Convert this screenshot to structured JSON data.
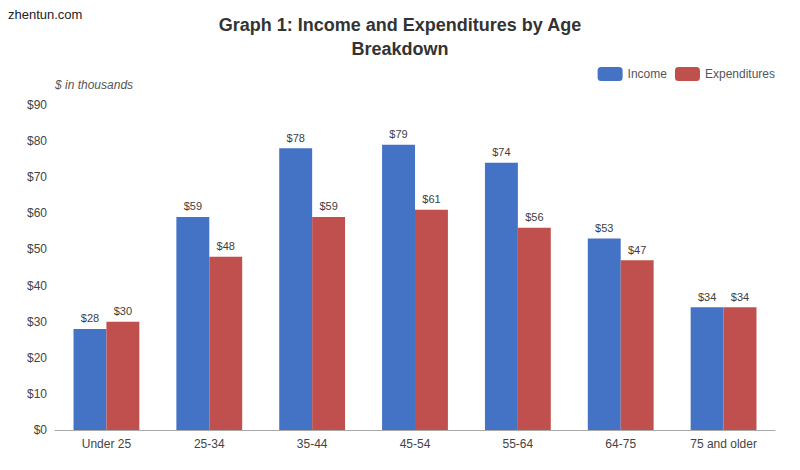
{
  "chart_data": {
    "type": "bar",
    "title": "Graph 1: Income and Expenditures by Age\nBreakdown",
    "ylabel": "$ in thousands",
    "annotations": [
      "zhentun.com"
    ],
    "categories": [
      "Under 25",
      "25-34",
      "35-44",
      "45-54",
      "55-64",
      "64-75",
      "75 and older"
    ],
    "series": [
      {
        "name": "Income",
        "color": "#4472C4",
        "values": [
          28,
          59,
          78,
          79,
          74,
          53,
          34
        ],
        "value_labels": [
          "$28",
          "$59",
          "$78",
          "$79",
          "$74",
          "$53",
          "$34"
        ]
      },
      {
        "name": "Expenditures",
        "color": "#C0504D",
        "values": [
          30,
          48,
          59,
          61,
          56,
          47,
          34
        ],
        "value_labels": [
          "$30",
          "$48",
          "$59",
          "$61",
          "$56",
          "$47",
          "$34"
        ]
      }
    ],
    "ylim": [
      0,
      90
    ],
    "yticks": [
      {
        "value": 0,
        "label": "$0"
      },
      {
        "value": 10,
        "label": "$10"
      },
      {
        "value": 20,
        "label": "$20"
      },
      {
        "value": 30,
        "label": "$30"
      },
      {
        "value": 40,
        "label": "$40"
      },
      {
        "value": 50,
        "label": "$50"
      },
      {
        "value": 60,
        "label": "$60"
      },
      {
        "value": 70,
        "label": "$70"
      },
      {
        "value": 80,
        "label": "$80"
      },
      {
        "value": 90,
        "label": "$90"
      }
    ],
    "grid": false,
    "legend": "upper right",
    "data_labels": true
  }
}
